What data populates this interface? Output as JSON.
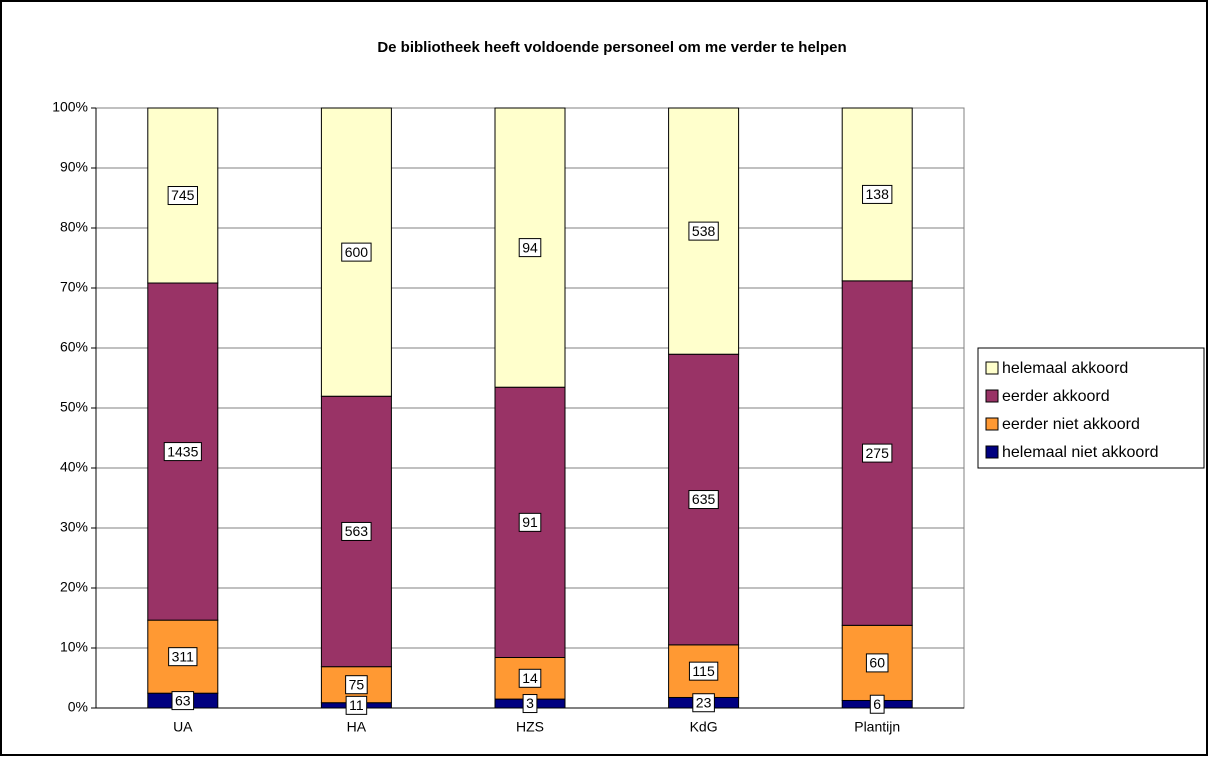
{
  "chart_data": {
    "type": "bar",
    "stacking": "percent",
    "title": "De bibliotheek heeft voldoende personeel om me verder te helpen",
    "categories": [
      "UA",
      "HA",
      "HZS",
      "KdG",
      "Plantijn"
    ],
    "series": [
      {
        "name": "helemaal niet akkoord",
        "color": "#000080",
        "values": [
          63,
          11,
          3,
          23,
          6
        ]
      },
      {
        "name": "eerder niet akkoord",
        "color": "#ff9933",
        "values": [
          311,
          75,
          14,
          115,
          60
        ]
      },
      {
        "name": "eerder akkoord",
        "color": "#993366",
        "values": [
          1435,
          563,
          91,
          635,
          275
        ]
      },
      {
        "name": "helemaal akkoord",
        "color": "#ffffcc",
        "values": [
          745,
          600,
          94,
          538,
          138
        ]
      }
    ],
    "ylim": [
      0,
      100
    ],
    "yticks": [
      {
        "value": 0,
        "label": "0%"
      },
      {
        "value": 10,
        "label": "10%"
      },
      {
        "value": 20,
        "label": "20%"
      },
      {
        "value": 30,
        "label": "30%"
      },
      {
        "value": 40,
        "label": "40%"
      },
      {
        "value": 50,
        "label": "50%"
      },
      {
        "value": 60,
        "label": "60%"
      },
      {
        "value": 70,
        "label": "70%"
      },
      {
        "value": 80,
        "label": "80%"
      },
      {
        "value": 90,
        "label": "90%"
      },
      {
        "value": 100,
        "label": "100%"
      }
    ],
    "grid": true,
    "legend": "right"
  }
}
